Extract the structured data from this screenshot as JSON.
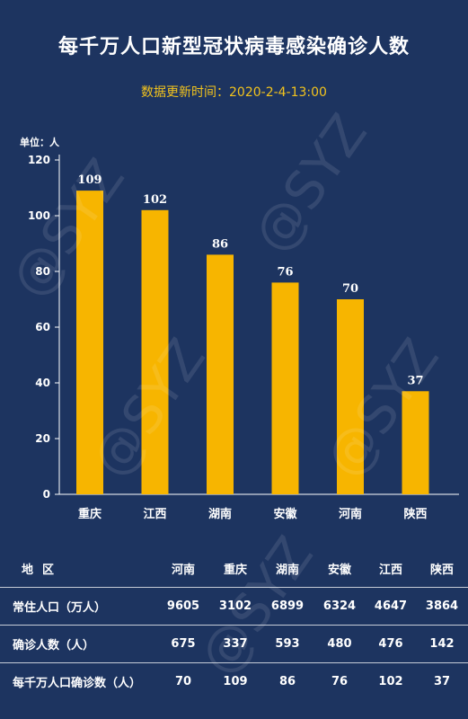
{
  "title": "每千万人口新型冠状病毒感染确诊人数",
  "subtitle": "数据更新时间：2020-2-4-13:00",
  "unit_label": "单位：人",
  "watermark": "@SYZ",
  "colors": {
    "background": "#1d3460",
    "bar": "#f7b500",
    "accent": "#f2c31d",
    "text": "#ffffff"
  },
  "chart_data": {
    "type": "bar",
    "title": "每千万人口新型冠状病毒感染确诊人数",
    "subtitle": "数据更新时间：2020-2-4-13:00",
    "ylabel": "单位：人",
    "xlabel": "",
    "categories": [
      "重庆",
      "江西",
      "湖南",
      "安徽",
      "河南",
      "陕西"
    ],
    "values": [
      109,
      102,
      86,
      76,
      70,
      37
    ],
    "ylim": [
      0,
      120
    ],
    "yticks": [
      0,
      20,
      40,
      60,
      80,
      100,
      120
    ],
    "grid": false,
    "data_labels": true
  },
  "table": {
    "header": [
      "地区",
      "河南",
      "重庆",
      "湖南",
      "安徽",
      "江西",
      "陕西"
    ],
    "rows": [
      {
        "label": "常住人口（万人）",
        "values": [
          "9605",
          "3102",
          "6899",
          "6324",
          "4647",
          "3864"
        ]
      },
      {
        "label": "确诊人数（人）",
        "values": [
          "675",
          "337",
          "593",
          "480",
          "476",
          "142"
        ]
      },
      {
        "label": "每千万人口确诊数（人）",
        "values": [
          "70",
          "109",
          "86",
          "76",
          "102",
          "37"
        ]
      }
    ]
  }
}
